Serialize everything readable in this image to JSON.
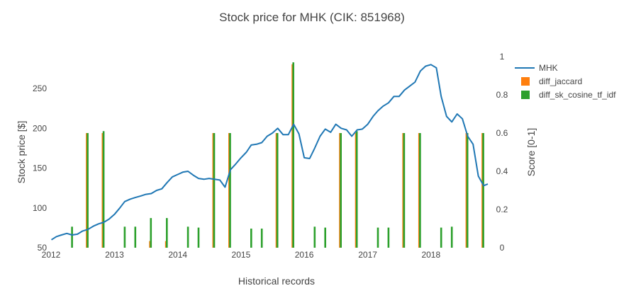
{
  "chart_data": {
    "type": "bar+line",
    "title": "Stock price for MHK (CIK: 851968)",
    "xlabel": "Historical records",
    "ylabel": "Stock price [$]",
    "y2label": "Score [0-1]",
    "xlim": [
      "2012-01-01",
      "2018-11-25"
    ],
    "ylim": [
      50,
      290
    ],
    "y2lim": [
      0,
      1
    ],
    "x_ticks": [
      {
        "date": "2012-01-01",
        "label": "2012"
      },
      {
        "date": "2013-01-01",
        "label": "2013"
      },
      {
        "date": "2014-01-01",
        "label": "2014"
      },
      {
        "date": "2015-01-01",
        "label": "2015"
      },
      {
        "date": "2016-01-01",
        "label": "2016"
      },
      {
        "date": "2017-01-01",
        "label": "2017"
      },
      {
        "date": "2018-01-01",
        "label": "2018"
      }
    ],
    "y_ticks": [
      {
        "value": 50,
        "label": "50"
      },
      {
        "value": 100,
        "label": "100"
      },
      {
        "value": 150,
        "label": "150"
      },
      {
        "value": 200,
        "label": "200"
      },
      {
        "value": 250,
        "label": "250"
      }
    ],
    "y2_ticks": [
      {
        "value": 0,
        "label": "0"
      },
      {
        "value": 0.2,
        "label": "0.2"
      },
      {
        "value": 0.4,
        "label": "0.4"
      },
      {
        "value": 0.6,
        "label": "0.6"
      },
      {
        "value": 0.8,
        "label": "0.8"
      },
      {
        "value": 1,
        "label": "1"
      }
    ],
    "legend": {
      "placement": "top-right"
    },
    "grid": false,
    "line_series": {
      "name": "MHK",
      "color": "#1f77b4",
      "points": [
        [
          "2012-01-03",
          60
        ],
        [
          "2012-02-01",
          64
        ],
        [
          "2012-03-01",
          66
        ],
        [
          "2012-04-01",
          68
        ],
        [
          "2012-05-01",
          66
        ],
        [
          "2012-06-01",
          67
        ],
        [
          "2012-07-01",
          71
        ],
        [
          "2012-08-01",
          73
        ],
        [
          "2012-09-01",
          77
        ],
        [
          "2012-10-01",
          80
        ],
        [
          "2012-11-01",
          82
        ],
        [
          "2012-12-01",
          86
        ],
        [
          "2013-01-01",
          92
        ],
        [
          "2013-02-01",
          100
        ],
        [
          "2013-03-01",
          108
        ],
        [
          "2013-04-01",
          111
        ],
        [
          "2013-05-01",
          113
        ],
        [
          "2013-06-01",
          115
        ],
        [
          "2013-07-01",
          117
        ],
        [
          "2013-08-01",
          118
        ],
        [
          "2013-09-01",
          122
        ],
        [
          "2013-10-01",
          124
        ],
        [
          "2013-11-01",
          132
        ],
        [
          "2013-12-01",
          139
        ],
        [
          "2014-01-01",
          142
        ],
        [
          "2014-02-01",
          145
        ],
        [
          "2014-03-01",
          146
        ],
        [
          "2014-04-01",
          141
        ],
        [
          "2014-05-01",
          137
        ],
        [
          "2014-06-01",
          136
        ],
        [
          "2014-07-01",
          137
        ],
        [
          "2014-08-01",
          136
        ],
        [
          "2014-09-01",
          135
        ],
        [
          "2014-10-01",
          126
        ],
        [
          "2014-11-01",
          148
        ],
        [
          "2014-12-01",
          155
        ],
        [
          "2015-01-01",
          163
        ],
        [
          "2015-02-01",
          170
        ],
        [
          "2015-03-01",
          179
        ],
        [
          "2015-04-01",
          180
        ],
        [
          "2015-05-01",
          182
        ],
        [
          "2015-06-01",
          190
        ],
        [
          "2015-07-01",
          194
        ],
        [
          "2015-08-01",
          200
        ],
        [
          "2015-09-01",
          192
        ],
        [
          "2015-10-01",
          192
        ],
        [
          "2015-11-01",
          205
        ],
        [
          "2015-12-01",
          193
        ],
        [
          "2016-01-01",
          163
        ],
        [
          "2016-02-01",
          162
        ],
        [
          "2016-03-01",
          175
        ],
        [
          "2016-04-01",
          190
        ],
        [
          "2016-05-01",
          199
        ],
        [
          "2016-06-01",
          195
        ],
        [
          "2016-07-01",
          205
        ],
        [
          "2016-08-01",
          200
        ],
        [
          "2016-09-01",
          198
        ],
        [
          "2016-10-01",
          190
        ],
        [
          "2016-11-01",
          198
        ],
        [
          "2016-12-01",
          199
        ],
        [
          "2017-01-01",
          205
        ],
        [
          "2017-02-01",
          215
        ],
        [
          "2017-03-01",
          222
        ],
        [
          "2017-04-01",
          228
        ],
        [
          "2017-05-01",
          232
        ],
        [
          "2017-06-01",
          240
        ],
        [
          "2017-07-01",
          240
        ],
        [
          "2017-08-01",
          248
        ],
        [
          "2017-09-01",
          253
        ],
        [
          "2017-10-01",
          258
        ],
        [
          "2017-11-01",
          272
        ],
        [
          "2017-12-01",
          278
        ],
        [
          "2018-01-01",
          280
        ],
        [
          "2018-02-01",
          276
        ],
        [
          "2018-03-01",
          240
        ],
        [
          "2018-04-01",
          215
        ],
        [
          "2018-05-01",
          208
        ],
        [
          "2018-06-01",
          218
        ],
        [
          "2018-07-01",
          212
        ],
        [
          "2018-08-01",
          190
        ],
        [
          "2018-09-01",
          180
        ],
        [
          "2018-10-01",
          140
        ],
        [
          "2018-11-01",
          128
        ],
        [
          "2018-11-25",
          130
        ]
      ]
    },
    "bar_series": [
      {
        "name": "diff_jaccard",
        "color": "#ff7f0e",
        "points": [
          [
            "2012-07-25",
            0.6
          ],
          [
            "2012-10-25",
            0.6
          ],
          [
            "2013-07-25",
            0.035
          ],
          [
            "2013-10-25",
            0.035
          ],
          [
            "2014-07-25",
            0.6
          ],
          [
            "2014-10-25",
            0.6
          ],
          [
            "2015-07-25",
            0.6
          ],
          [
            "2015-10-25",
            0.96
          ],
          [
            "2016-07-25",
            0.6
          ],
          [
            "2016-10-25",
            0.6
          ],
          [
            "2017-07-25",
            0.6
          ],
          [
            "2017-10-25",
            0.6
          ],
          [
            "2018-07-25",
            0.6
          ],
          [
            "2018-10-25",
            0.6
          ]
        ]
      },
      {
        "name": "diff_sk_cosine_tf_idf",
        "color": "#2ca02c",
        "points": [
          [
            "2012-05-01",
            0.11
          ],
          [
            "2012-07-30",
            0.6
          ],
          [
            "2012-10-30",
            0.61
          ],
          [
            "2013-03-01",
            0.11
          ],
          [
            "2013-05-01",
            0.11
          ],
          [
            "2013-07-30",
            0.155
          ],
          [
            "2013-10-30",
            0.155
          ],
          [
            "2014-03-01",
            0.11
          ],
          [
            "2014-05-01",
            0.105
          ],
          [
            "2014-07-30",
            0.6
          ],
          [
            "2014-10-30",
            0.6
          ],
          [
            "2015-03-01",
            0.1
          ],
          [
            "2015-05-01",
            0.1
          ],
          [
            "2015-07-30",
            0.6
          ],
          [
            "2015-10-30",
            0.97
          ],
          [
            "2016-03-01",
            0.11
          ],
          [
            "2016-05-01",
            0.105
          ],
          [
            "2016-07-30",
            0.6
          ],
          [
            "2016-10-30",
            0.61
          ],
          [
            "2017-03-01",
            0.105
          ],
          [
            "2017-05-01",
            0.105
          ],
          [
            "2017-07-30",
            0.6
          ],
          [
            "2017-10-30",
            0.6
          ],
          [
            "2018-03-01",
            0.105
          ],
          [
            "2018-05-01",
            0.11
          ],
          [
            "2018-07-30",
            0.6
          ],
          [
            "2018-10-30",
            0.6
          ]
        ]
      }
    ]
  }
}
